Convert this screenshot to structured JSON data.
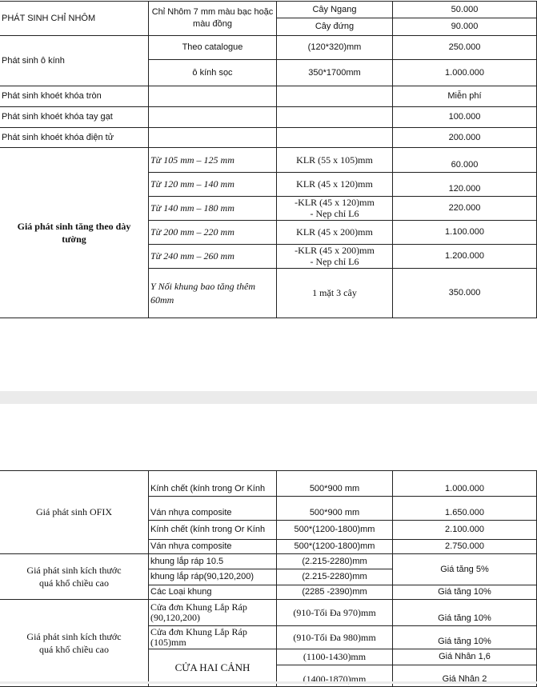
{
  "table_top": {
    "rows": [
      {
        "label": "PHÁT SINH CHỈ NHÔM",
        "detail": "Chỉ Nhôm 7 mm màu bạc hoặc màu đồng",
        "sub": [
          {
            "spec": "Cây Ngang",
            "price": "50.000"
          },
          {
            "spec": "Cây đứng",
            "price": "90.000"
          }
        ]
      },
      {
        "label": "Phát sinh ô kính",
        "sub": [
          {
            "detail": "Theo catalogue",
            "spec": "(120*320)mm",
            "price": "250.000"
          },
          {
            "detail": "ô kính sọc",
            "spec": "350*1700mm",
            "price": "1.000.000"
          }
        ]
      },
      {
        "label": "Phát sinh khoét khóa tròn",
        "price": "Miễn phí"
      },
      {
        "label": "Phát sinh khoét khóa tay gạt",
        "price": "100.000"
      },
      {
        "label": "Phát sinh khoét khóa điện tử",
        "price": "200.000"
      },
      {
        "label": "Giá phát sinh tăng theo dày tường",
        "sub": [
          {
            "detail": "Từ 105 mm – 125 mm",
            "spec": "KLR (55 x 105)mm",
            "price": "60.000"
          },
          {
            "detail": "Từ 120 mm – 140 mm",
            "spec": "KLR (45 x 120)mm",
            "price": "120.000"
          },
          {
            "detail": "Từ 140 mm – 180 mm",
            "spec": "-KLR (45 x 120)mm",
            "spec2": "- Nẹp chỉ L6",
            "price": "220.000"
          },
          {
            "detail": "Từ 200 mm – 220 mm",
            "spec": "KLR (45 x 200)mm",
            "price": "1.100.000"
          },
          {
            "detail": "Từ 240 mm – 260 mm",
            "spec": "-KLR (45 x 200)mm",
            "spec2": "- Nẹp chỉ L6",
            "price": "1.200.000"
          },
          {
            "detail": "Y Nối khung bao tăng thêm 60mm",
            "spec": "1 mặt 3 cây",
            "price": "350.000"
          }
        ]
      }
    ]
  },
  "table_bottom": {
    "rows": [
      {
        "label": "Giá phát sinh OFIX",
        "sub": [
          {
            "detail": "Kính chết (kính trong Or Kính",
            "spec": "500*900  mm",
            "price": "1.000.000"
          },
          {
            "detail": "Ván nhựa composite",
            "spec": "500*900  mm",
            "price": "1.650.000"
          },
          {
            "detail": "Kính chết (kính trong Or Kính",
            "spec": "500*(1200-1800)mm",
            "price": "2.100.000"
          },
          {
            "detail": "Ván nhựa composite",
            "spec": "500*(1200-1800)mm",
            "price": "2.750.000"
          }
        ]
      },
      {
        "label": "Giá phát sinh kích thước quá khổ chiều cao",
        "sub": [
          {
            "detail": "khung lắp ráp 10.5",
            "spec": "(2.215-2280)mm"
          },
          {
            "detail": "khung lắp ráp(90,120,200)",
            "spec": "(2.215-2280)mm"
          },
          {
            "detail": "Các Loại khung",
            "spec": "(2285 -2390)mm",
            "price": "Giá tăng 10%"
          }
        ],
        "merged_price": "Giá tăng 5%"
      },
      {
        "label": "Giá phát sinh kích thước quá khổ chiều cao",
        "sub": [
          {
            "detail": "Cửa đơn Khung Lắp Ráp (90,120,200)",
            "spec": "(910-Tối Đa 970)mm",
            "price": "Giá tăng 10%"
          },
          {
            "detail": "Cửa đơn Khung Lắp Ráp (105)mm",
            "spec": "(910-Tối Đa 980)mm",
            "price": "Giá tăng 10%"
          },
          {
            "spec": "(1100-1430)mm",
            "price": "Giá Nhân 1,6"
          },
          {
            "spec": "(1400-1870)mm",
            "price": "Giá Nhân 2"
          }
        ],
        "merged_detail": "CỬA HAI CẢNH"
      }
    ]
  }
}
